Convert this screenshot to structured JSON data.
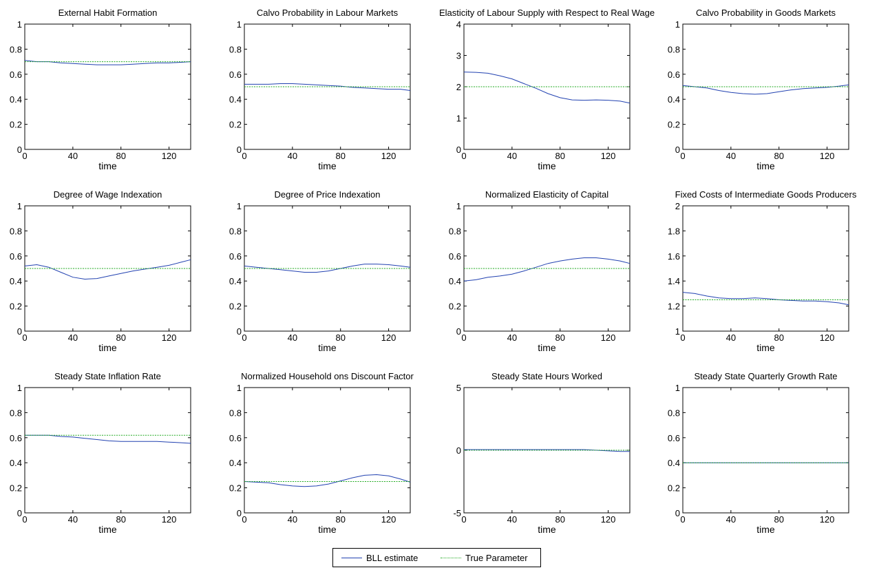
{
  "colors": {
    "estimate": "#2040b0",
    "true": "#22aa22",
    "axis": "#000000"
  },
  "legend": {
    "estimate_label": "BLL estimate",
    "true_label": "True Parameter"
  },
  "chart_data": [
    {
      "type": "line",
      "title": "External Habit Formation",
      "xlabel": "time",
      "ylabel": "",
      "xlim": [
        0,
        138
      ],
      "ylim": [
        0,
        1
      ],
      "xticks": [
        0,
        40,
        80,
        120
      ],
      "yticks": [
        0,
        0.2,
        0.4,
        0.6,
        0.8,
        1
      ],
      "ytick_labels": [
        "0",
        "0.2",
        "0.4",
        "0.6",
        "0.8",
        "1"
      ],
      "series": [
        {
          "name": "BLL estimate",
          "x": [
            0,
            10,
            20,
            30,
            40,
            50,
            60,
            70,
            80,
            90,
            100,
            110,
            120,
            130,
            138
          ],
          "y": [
            0.71,
            0.7,
            0.7,
            0.69,
            0.685,
            0.68,
            0.675,
            0.675,
            0.675,
            0.68,
            0.685,
            0.69,
            0.69,
            0.695,
            0.7
          ]
        },
        {
          "name": "True Parameter",
          "x": [
            0,
            138
          ],
          "y": [
            0.7,
            0.7
          ]
        }
      ]
    },
    {
      "type": "line",
      "title": "Calvo Probability in Labour Markets",
      "xlabel": "time",
      "ylabel": "",
      "xlim": [
        0,
        138
      ],
      "ylim": [
        0,
        1
      ],
      "xticks": [
        0,
        40,
        80,
        120
      ],
      "yticks": [
        0,
        0.2,
        0.4,
        0.6,
        0.8,
        1
      ],
      "ytick_labels": [
        "0",
        "0.2",
        "0.4",
        "0.6",
        "0.8",
        "1"
      ],
      "series": [
        {
          "name": "BLL estimate",
          "x": [
            0,
            10,
            20,
            30,
            40,
            50,
            60,
            70,
            80,
            90,
            100,
            110,
            120,
            130,
            138
          ],
          "y": [
            0.52,
            0.52,
            0.52,
            0.525,
            0.525,
            0.52,
            0.515,
            0.51,
            0.505,
            0.495,
            0.49,
            0.485,
            0.48,
            0.48,
            0.47
          ]
        },
        {
          "name": "True Parameter",
          "x": [
            0,
            138
          ],
          "y": [
            0.5,
            0.5
          ]
        }
      ]
    },
    {
      "type": "line",
      "title": "Elasticity of Labour Supply with Respect to Real Wage",
      "xlabel": "time",
      "ylabel": "",
      "xlim": [
        0,
        138
      ],
      "ylim": [
        0,
        4
      ],
      "xticks": [
        0,
        40,
        80,
        120
      ],
      "yticks": [
        0,
        1,
        2,
        3,
        4
      ],
      "ytick_labels": [
        "0",
        "1",
        "2",
        "3",
        "4"
      ],
      "series": [
        {
          "name": "BLL estimate",
          "x": [
            0,
            10,
            20,
            30,
            40,
            50,
            60,
            70,
            80,
            90,
            100,
            110,
            120,
            130,
            138
          ],
          "y": [
            2.47,
            2.46,
            2.43,
            2.35,
            2.25,
            2.1,
            1.95,
            1.78,
            1.65,
            1.58,
            1.57,
            1.58,
            1.57,
            1.54,
            1.48
          ]
        },
        {
          "name": "True Parameter",
          "x": [
            0,
            138
          ],
          "y": [
            2.0,
            2.0
          ]
        }
      ]
    },
    {
      "type": "line",
      "title": "Calvo Probability in Goods Markets",
      "xlabel": "time",
      "ylabel": "",
      "xlim": [
        0,
        138
      ],
      "ylim": [
        0,
        1
      ],
      "xticks": [
        0,
        40,
        80,
        120
      ],
      "yticks": [
        0,
        0.2,
        0.4,
        0.6,
        0.8,
        1
      ],
      "ytick_labels": [
        "0",
        "0.2",
        "0.4",
        "0.6",
        "0.8",
        "1"
      ],
      "series": [
        {
          "name": "BLL estimate",
          "x": [
            0,
            10,
            20,
            30,
            40,
            50,
            60,
            70,
            80,
            90,
            100,
            110,
            120,
            130,
            138
          ],
          "y": [
            0.51,
            0.5,
            0.49,
            0.47,
            0.455,
            0.445,
            0.44,
            0.445,
            0.46,
            0.475,
            0.485,
            0.49,
            0.495,
            0.505,
            0.515
          ]
        },
        {
          "name": "True Parameter",
          "x": [
            0,
            138
          ],
          "y": [
            0.5,
            0.5
          ]
        }
      ]
    },
    {
      "type": "line",
      "title": "Degree of Wage Indexation",
      "xlabel": "time",
      "ylabel": "",
      "xlim": [
        0,
        138
      ],
      "ylim": [
        0,
        1
      ],
      "xticks": [
        0,
        40,
        80,
        120
      ],
      "yticks": [
        0,
        0.2,
        0.4,
        0.6,
        0.8,
        1
      ],
      "ytick_labels": [
        "0",
        "0.2",
        "0.4",
        "0.6",
        "0.8",
        "1"
      ],
      "series": [
        {
          "name": "BLL estimate",
          "x": [
            0,
            10,
            20,
            30,
            40,
            50,
            60,
            70,
            80,
            90,
            100,
            110,
            120,
            130,
            138
          ],
          "y": [
            0.52,
            0.53,
            0.51,
            0.47,
            0.43,
            0.415,
            0.42,
            0.44,
            0.46,
            0.48,
            0.495,
            0.51,
            0.525,
            0.55,
            0.57
          ]
        },
        {
          "name": "True Parameter",
          "x": [
            0,
            138
          ],
          "y": [
            0.5,
            0.5
          ]
        }
      ]
    },
    {
      "type": "line",
      "title": "Degree of Price Indexation",
      "xlabel": "time",
      "ylabel": "",
      "xlim": [
        0,
        138
      ],
      "ylim": [
        0,
        1
      ],
      "xticks": [
        0,
        40,
        80,
        120
      ],
      "yticks": [
        0,
        0.2,
        0.4,
        0.6,
        0.8,
        1
      ],
      "ytick_labels": [
        "0",
        "0.2",
        "0.4",
        "0.6",
        "0.8",
        "1"
      ],
      "series": [
        {
          "name": "BLL estimate",
          "x": [
            0,
            10,
            20,
            30,
            40,
            50,
            60,
            70,
            80,
            90,
            100,
            110,
            120,
            130,
            138
          ],
          "y": [
            0.52,
            0.51,
            0.5,
            0.49,
            0.48,
            0.47,
            0.47,
            0.48,
            0.5,
            0.52,
            0.535,
            0.535,
            0.53,
            0.52,
            0.51
          ]
        },
        {
          "name": "True Parameter",
          "x": [
            0,
            138
          ],
          "y": [
            0.5,
            0.5
          ]
        }
      ]
    },
    {
      "type": "line",
      "title": "Normalized Elasticity of Capital",
      "xlabel": "time",
      "ylabel": "",
      "xlim": [
        0,
        138
      ],
      "ylim": [
        0,
        1
      ],
      "xticks": [
        0,
        40,
        80,
        120
      ],
      "yticks": [
        0,
        0.2,
        0.4,
        0.6,
        0.8,
        1
      ],
      "ytick_labels": [
        "0",
        "0.2",
        "0.4",
        "0.6",
        "0.8",
        "1"
      ],
      "series": [
        {
          "name": "BLL estimate",
          "x": [
            0,
            10,
            20,
            30,
            40,
            50,
            60,
            70,
            80,
            90,
            100,
            110,
            120,
            130,
            138
          ],
          "y": [
            0.4,
            0.41,
            0.43,
            0.44,
            0.455,
            0.48,
            0.51,
            0.54,
            0.56,
            0.575,
            0.585,
            0.585,
            0.575,
            0.56,
            0.54
          ]
        },
        {
          "name": "True Parameter",
          "x": [
            0,
            138
          ],
          "y": [
            0.5,
            0.5
          ]
        }
      ]
    },
    {
      "type": "line",
      "title": "Fixed Costs of Intermediate Goods Producers",
      "xlabel": "time",
      "ylabel": "",
      "xlim": [
        0,
        138
      ],
      "ylim": [
        1,
        2
      ],
      "xticks": [
        0,
        40,
        80,
        120
      ],
      "yticks": [
        1,
        1.2,
        1.4,
        1.6,
        1.8,
        2
      ],
      "ytick_labels": [
        "1",
        "1.2",
        "1.4",
        "1.6",
        "1.8",
        "2"
      ],
      "series": [
        {
          "name": "BLL estimate",
          "x": [
            0,
            10,
            20,
            30,
            40,
            50,
            60,
            70,
            80,
            90,
            100,
            110,
            120,
            130,
            138
          ],
          "y": [
            1.31,
            1.3,
            1.28,
            1.265,
            1.26,
            1.26,
            1.265,
            1.26,
            1.25,
            1.245,
            1.24,
            1.24,
            1.235,
            1.225,
            1.21
          ]
        },
        {
          "name": "True Parameter",
          "x": [
            0,
            138
          ],
          "y": [
            1.25,
            1.25
          ]
        }
      ]
    },
    {
      "type": "line",
      "title": "Steady State Inflation Rate",
      "xlabel": "time",
      "ylabel": "",
      "xlim": [
        0,
        138
      ],
      "ylim": [
        0,
        1
      ],
      "xticks": [
        0,
        40,
        80,
        120
      ],
      "yticks": [
        0,
        0.2,
        0.4,
        0.6,
        0.8,
        1
      ],
      "ytick_labels": [
        "0",
        "0.2",
        "0.4",
        "0.6",
        "0.8",
        "1"
      ],
      "series": [
        {
          "name": "BLL estimate",
          "x": [
            0,
            10,
            20,
            30,
            40,
            50,
            60,
            70,
            80,
            90,
            100,
            110,
            120,
            130,
            138
          ],
          "y": [
            0.62,
            0.62,
            0.62,
            0.61,
            0.605,
            0.595,
            0.585,
            0.575,
            0.57,
            0.57,
            0.57,
            0.57,
            0.565,
            0.56,
            0.555
          ]
        },
        {
          "name": "True Parameter",
          "x": [
            0,
            138
          ],
          "y": [
            0.62,
            0.62
          ]
        }
      ]
    },
    {
      "type": "line",
      "title": "Normalized Household ons Discount Factor",
      "xlabel": "time",
      "ylabel": "",
      "xlim": [
        0,
        138
      ],
      "ylim": [
        0,
        1
      ],
      "xticks": [
        0,
        40,
        80,
        120
      ],
      "yticks": [
        0,
        0.2,
        0.4,
        0.6,
        0.8,
        1
      ],
      "ytick_labels": [
        "0",
        "0.2",
        "0.4",
        "0.6",
        "0.8",
        "1"
      ],
      "series": [
        {
          "name": "BLL estimate",
          "x": [
            0,
            10,
            20,
            30,
            40,
            50,
            60,
            70,
            80,
            90,
            100,
            110,
            120,
            130,
            138
          ],
          "y": [
            0.25,
            0.245,
            0.24,
            0.225,
            0.215,
            0.21,
            0.215,
            0.23,
            0.255,
            0.28,
            0.3,
            0.305,
            0.295,
            0.27,
            0.245
          ]
        },
        {
          "name": "True Parameter",
          "x": [
            0,
            138
          ],
          "y": [
            0.25,
            0.25
          ]
        }
      ]
    },
    {
      "type": "line",
      "title": "Steady State Hours Worked",
      "xlabel": "time",
      "ylabel": "",
      "xlim": [
        0,
        138
      ],
      "ylim": [
        -5,
        5
      ],
      "xticks": [
        0,
        40,
        80,
        120
      ],
      "yticks": [
        -5,
        0,
        5
      ],
      "ytick_labels": [
        "-5",
        "0",
        "5"
      ],
      "series": [
        {
          "name": "BLL estimate",
          "x": [
            0,
            10,
            20,
            30,
            40,
            50,
            60,
            70,
            80,
            90,
            100,
            110,
            120,
            130,
            138
          ],
          "y": [
            0.05,
            0.05,
            0.05,
            0.05,
            0.05,
            0.05,
            0.05,
            0.05,
            0.05,
            0.05,
            0.05,
            0.0,
            -0.05,
            -0.1,
            -0.1
          ]
        },
        {
          "name": "True Parameter",
          "x": [
            0,
            138
          ],
          "y": [
            0,
            0
          ]
        }
      ]
    },
    {
      "type": "line",
      "title": "Steady State Quarterly Growth Rate",
      "xlabel": "time",
      "ylabel": "",
      "xlim": [
        0,
        138
      ],
      "ylim": [
        0,
        1
      ],
      "xticks": [
        0,
        40,
        80,
        120
      ],
      "yticks": [
        0,
        0.2,
        0.4,
        0.6,
        0.8,
        1
      ],
      "ytick_labels": [
        "0",
        "0.2",
        "0.4",
        "0.6",
        "0.8",
        "1"
      ],
      "series": [
        {
          "name": "BLL estimate",
          "x": [
            0,
            138
          ],
          "y": [
            0.4,
            0.4
          ]
        },
        {
          "name": "True Parameter",
          "x": [
            0,
            138
          ],
          "y": [
            0.4,
            0.4
          ]
        }
      ]
    }
  ]
}
